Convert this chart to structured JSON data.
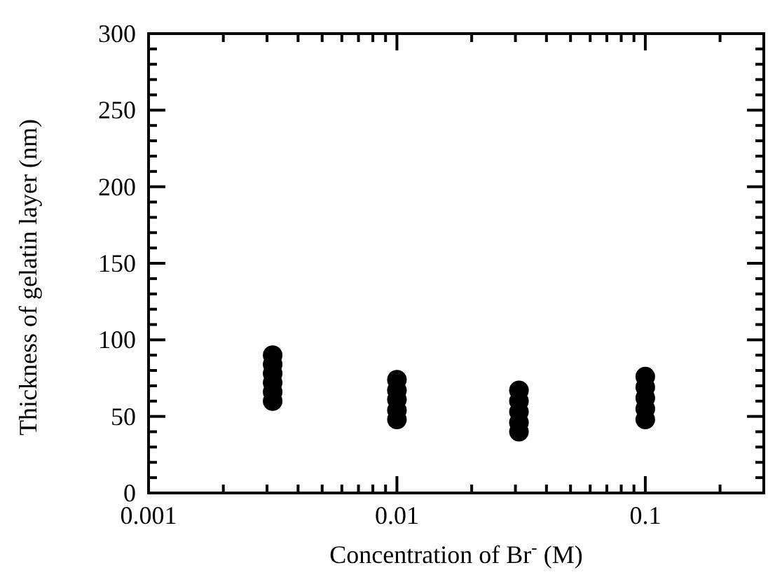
{
  "chart_data": {
    "type": "scatter",
    "xlabel": "Concentration of Br$^{-}$ (M)",
    "ylabel": "Thickness of gelatin layer (nm)",
    "log": "x",
    "marker": "circle",
    "grid": false,
    "xlim": [
      0.001,
      0.3
    ],
    "ylim": [
      0,
      300
    ],
    "xticks": [
      0.001,
      {
        "value": 0.002,
        "label": null
      },
      {
        "value": 0.003,
        "label": null
      },
      {
        "value": 0.004,
        "label": null
      },
      {
        "value": 0.005,
        "label": null
      },
      {
        "value": 0.006,
        "label": null
      },
      {
        "value": 0.007,
        "label": null
      },
      {
        "value": 0.008,
        "label": null
      },
      {
        "value": 0.009,
        "label": null
      },
      0.01,
      {
        "value": 0.02,
        "label": null
      },
      {
        "value": 0.03,
        "label": null
      },
      {
        "value": 0.04,
        "label": null
      },
      {
        "value": 0.05,
        "label": null
      },
      {
        "value": 0.06,
        "label": null
      },
      {
        "value": 0.07,
        "label": null
      },
      {
        "value": 0.08,
        "label": null
      },
      {
        "value": 0.09,
        "label": null
      },
      0.1,
      {
        "value": 0.2,
        "label": null
      }
    ],
    "yticks": [
      0,
      {
        "value": 10,
        "label": null
      },
      {
        "value": 20,
        "label": null
      },
      {
        "value": 30,
        "label": null
      },
      {
        "value": 40,
        "label": null
      },
      50,
      {
        "value": 60,
        "label": null
      },
      {
        "value": 70,
        "label": null
      },
      {
        "value": 80,
        "label": null
      },
      {
        "value": 90,
        "label": null
      },
      100,
      {
        "value": 110,
        "label": null
      },
      {
        "value": 120,
        "label": null
      },
      {
        "value": 130,
        "label": null
      },
      {
        "value": 140,
        "label": null
      },
      150,
      {
        "value": 160,
        "label": null
      },
      {
        "value": 170,
        "label": null
      },
      {
        "value": 180,
        "label": null
      },
      {
        "value": 190,
        "label": null
      },
      200,
      {
        "value": 210,
        "label": null
      },
      {
        "value": 220,
        "label": null
      },
      {
        "value": 230,
        "label": null
      },
      {
        "value": 240,
        "label": null
      },
      250,
      {
        "value": 260,
        "label": null
      },
      {
        "value": 270,
        "label": null
      },
      {
        "value": 280,
        "label": null
      },
      {
        "value": 290,
        "label": null
      },
      300
    ],
    "series": [
      {
        "color": "#000000",
        "x": [
          0.00316,
          0.00316,
          0.00316,
          0.00316,
          0.00316,
          0.00316,
          0.01,
          0.01,
          0.01,
          0.01,
          0.01,
          0.031,
          0.031,
          0.031,
          0.031,
          0.031,
          0.1,
          0.1,
          0.1,
          0.1,
          0.1
        ],
        "values": [
          90,
          84,
          78,
          72,
          66,
          60,
          74,
          67,
          61,
          54,
          48,
          67,
          60,
          53,
          46,
          40,
          76,
          69,
          62,
          55,
          48
        ]
      }
    ]
  }
}
